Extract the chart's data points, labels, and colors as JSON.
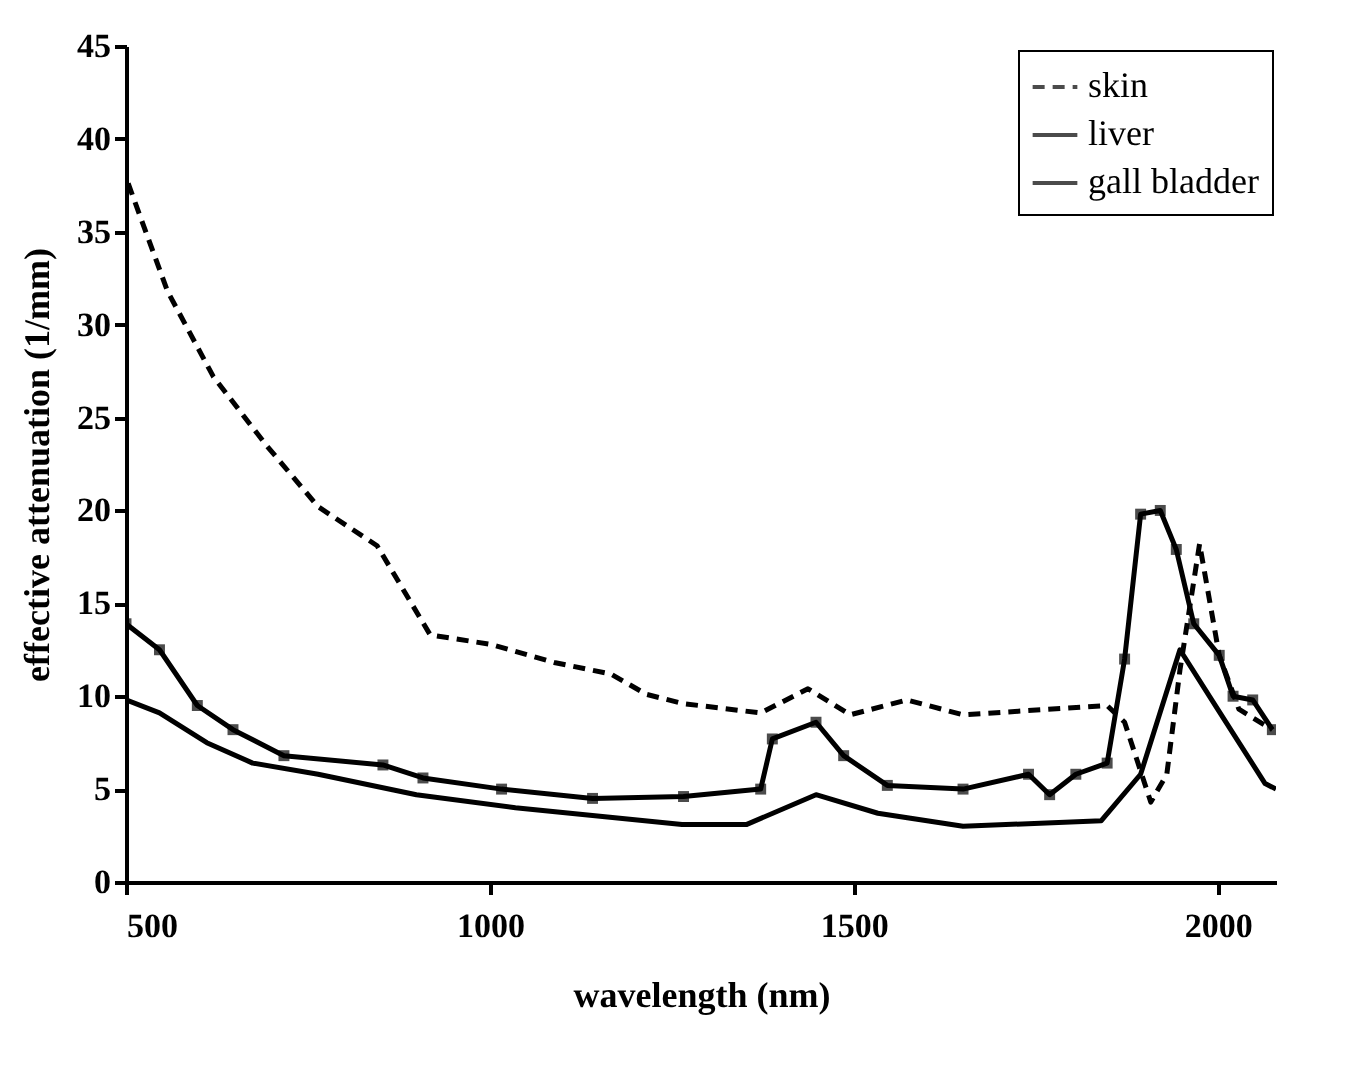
{
  "chart_data": {
    "type": "line",
    "xlabel": "wavelength (nm)",
    "ylabel": "effective attenuation (1/mm)",
    "xlim": [
      500,
      2080
    ],
    "xticks": [
      500,
      1000,
      1500,
      2000
    ],
    "ylim": [
      0,
      45
    ],
    "yticks": [
      0,
      5,
      10,
      15,
      20,
      25,
      30,
      35,
      40,
      45
    ],
    "grid": false,
    "legend": "top right",
    "series": [
      {
        "name": "skin",
        "color": "#000000",
        "line_style": "dashed",
        "marker": "none",
        "x": [
          503,
          557,
          620,
          693,
          764,
          845,
          918,
          1000,
          1090,
          1166,
          1215,
          1266,
          1372,
          1437,
          1495,
          1573,
          1650,
          1848,
          1872,
          1908,
          1930,
          1948,
          1975,
          2002,
          2029,
          2075
        ],
        "values": [
          37.6,
          31.8,
          27.2,
          23.5,
          20.2,
          18.1,
          13.3,
          12.8,
          11.8,
          11.2,
          10.1,
          9.6,
          9.1,
          10.4,
          9.0,
          9.8,
          9.0,
          9.5,
          8.6,
          4.3,
          5.8,
          11.4,
          18.2,
          12.2,
          9.3,
          8.2
        ]
      },
      {
        "name": "liver",
        "color": "#000000",
        "line_style": "solid",
        "marker": "none",
        "x": [
          500,
          546,
          611,
          674,
          764,
          899,
          1035,
          1264,
          1353,
          1448,
          1533,
          1650,
          1840,
          1894,
          1948,
          1995,
          2065,
          2080
        ],
        "values": [
          9.8,
          9.1,
          7.5,
          6.4,
          5.8,
          4.7,
          4.0,
          3.1,
          3.1,
          4.7,
          3.7,
          3.0,
          3.3,
          5.8,
          12.5,
          9.6,
          5.3,
          5.0
        ]
      },
      {
        "name": "gall bladder",
        "color": "#000000",
        "line_style": "solid",
        "marker": "square",
        "x": [
          500,
          546,
          598,
          647,
          717,
          853,
          908,
          1016,
          1141,
          1266,
          1372,
          1388,
          1448,
          1486,
          1546,
          1650,
          1740,
          1769,
          1805,
          1848,
          1872,
          1894,
          1921,
          1943,
          1967,
          2002,
          2021,
          2048,
          2075
        ],
        "values": [
          13.9,
          12.5,
          9.5,
          8.2,
          6.8,
          6.3,
          5.6,
          5.0,
          4.5,
          4.6,
          5.0,
          7.7,
          8.6,
          6.8,
          5.2,
          5.0,
          5.8,
          4.7,
          5.8,
          6.4,
          12.0,
          19.8,
          20.0,
          17.9,
          13.9,
          12.2,
          10.0,
          9.8,
          8.2
        ]
      }
    ]
  }
}
